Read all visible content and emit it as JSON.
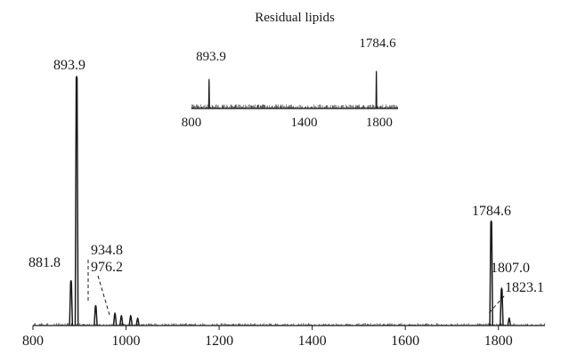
{
  "chart_data": [
    {
      "type": "line",
      "title": "",
      "xlabel": "",
      "ylabel": "",
      "xlim": [
        800,
        1900
      ],
      "ylim": [
        0,
        100
      ],
      "x_ticks": [
        800,
        1000,
        1200,
        1400,
        1600,
        1800
      ],
      "y_axis_visible": false,
      "grid": false,
      "noise_level": 1.0,
      "peaks": [
        {
          "x": 881.8,
          "y": 18
        },
        {
          "x": 893.9,
          "y": 100
        },
        {
          "x": 934.8,
          "y": 8
        },
        {
          "x": 976.2,
          "y": 5
        },
        {
          "x": 990,
          "y": 4
        },
        {
          "x": 1010,
          "y": 4
        },
        {
          "x": 1025,
          "y": 3
        },
        {
          "x": 1784.6,
          "y": 42
        },
        {
          "x": 1807.0,
          "y": 15
        },
        {
          "x": 1823.1,
          "y": 3
        }
      ],
      "annotations": [
        {
          "label": "893.9",
          "x": 893.9
        },
        {
          "label": "881.8",
          "x": 881.8
        },
        {
          "label": "934.8",
          "x": 934.8
        },
        {
          "label": "976.2",
          "x": 976.2
        },
        {
          "label": "1784.6",
          "x": 1784.6
        },
        {
          "label": "1807.0",
          "x": 1807.0
        },
        {
          "label": "1823.1",
          "x": 1823.1
        }
      ]
    },
    {
      "type": "line",
      "title": "Residual lipids",
      "xlabel": "",
      "ylabel": "",
      "xlim": [
        800,
        1900
      ],
      "ylim": [
        0,
        100
      ],
      "x_ticks": [
        800,
        1400,
        1800
      ],
      "y_axis_visible": false,
      "grid": false,
      "noise_level": 8,
      "peaks": [
        {
          "x": 893.9,
          "y": 55
        },
        {
          "x": 1784.6,
          "y": 70
        }
      ],
      "annotations": [
        {
          "label": "893.9",
          "x": 893.9
        },
        {
          "label": "1784.6",
          "x": 1784.6
        }
      ]
    }
  ]
}
